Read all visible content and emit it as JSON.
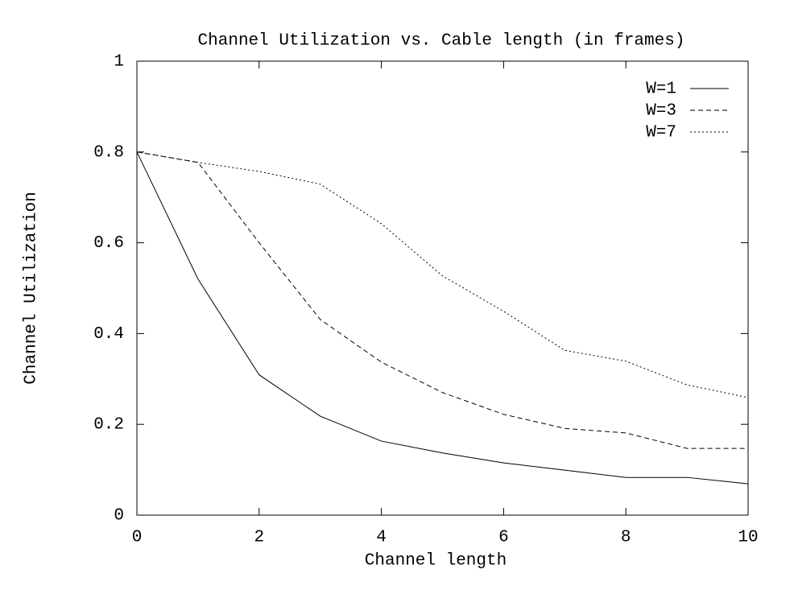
{
  "chart_data": {
    "type": "line",
    "title": "Channel Utilization vs. Cable length (in frames)",
    "x_label": "Channel length",
    "y_label": "Channel Utilization",
    "x": [
      0,
      1,
      2,
      3,
      4,
      5,
      6,
      7,
      8,
      9,
      10
    ],
    "series": [
      {
        "name": "W=1",
        "color": "#000000",
        "linestyle": "solid",
        "values": [
          0.8,
          0.52,
          0.309,
          0.218,
          0.163,
          0.137,
          0.115,
          0.099,
          0.083,
          0.083,
          0.069
        ]
      },
      {
        "name": "W=3",
        "color": "#000000",
        "linestyle": "dashed",
        "values": [
          0.8,
          0.777,
          0.6,
          0.431,
          0.337,
          0.27,
          0.222,
          0.191,
          0.181,
          0.147,
          0.147
        ]
      },
      {
        "name": "W=7",
        "color": "#000000",
        "linestyle": "dotted",
        "values": [
          0.8,
          0.777,
          0.757,
          0.729,
          0.642,
          0.527,
          0.449,
          0.363,
          0.339,
          0.287,
          0.259
        ]
      }
    ],
    "xlim": [
      0,
      10
    ],
    "xticks": [
      0,
      2,
      4,
      6,
      8,
      10
    ],
    "ylim": [
      0,
      1
    ],
    "yticks": [
      0,
      0.2,
      0.4,
      0.6,
      0.8,
      1
    ],
    "grid": false,
    "legend": "top-right"
  }
}
